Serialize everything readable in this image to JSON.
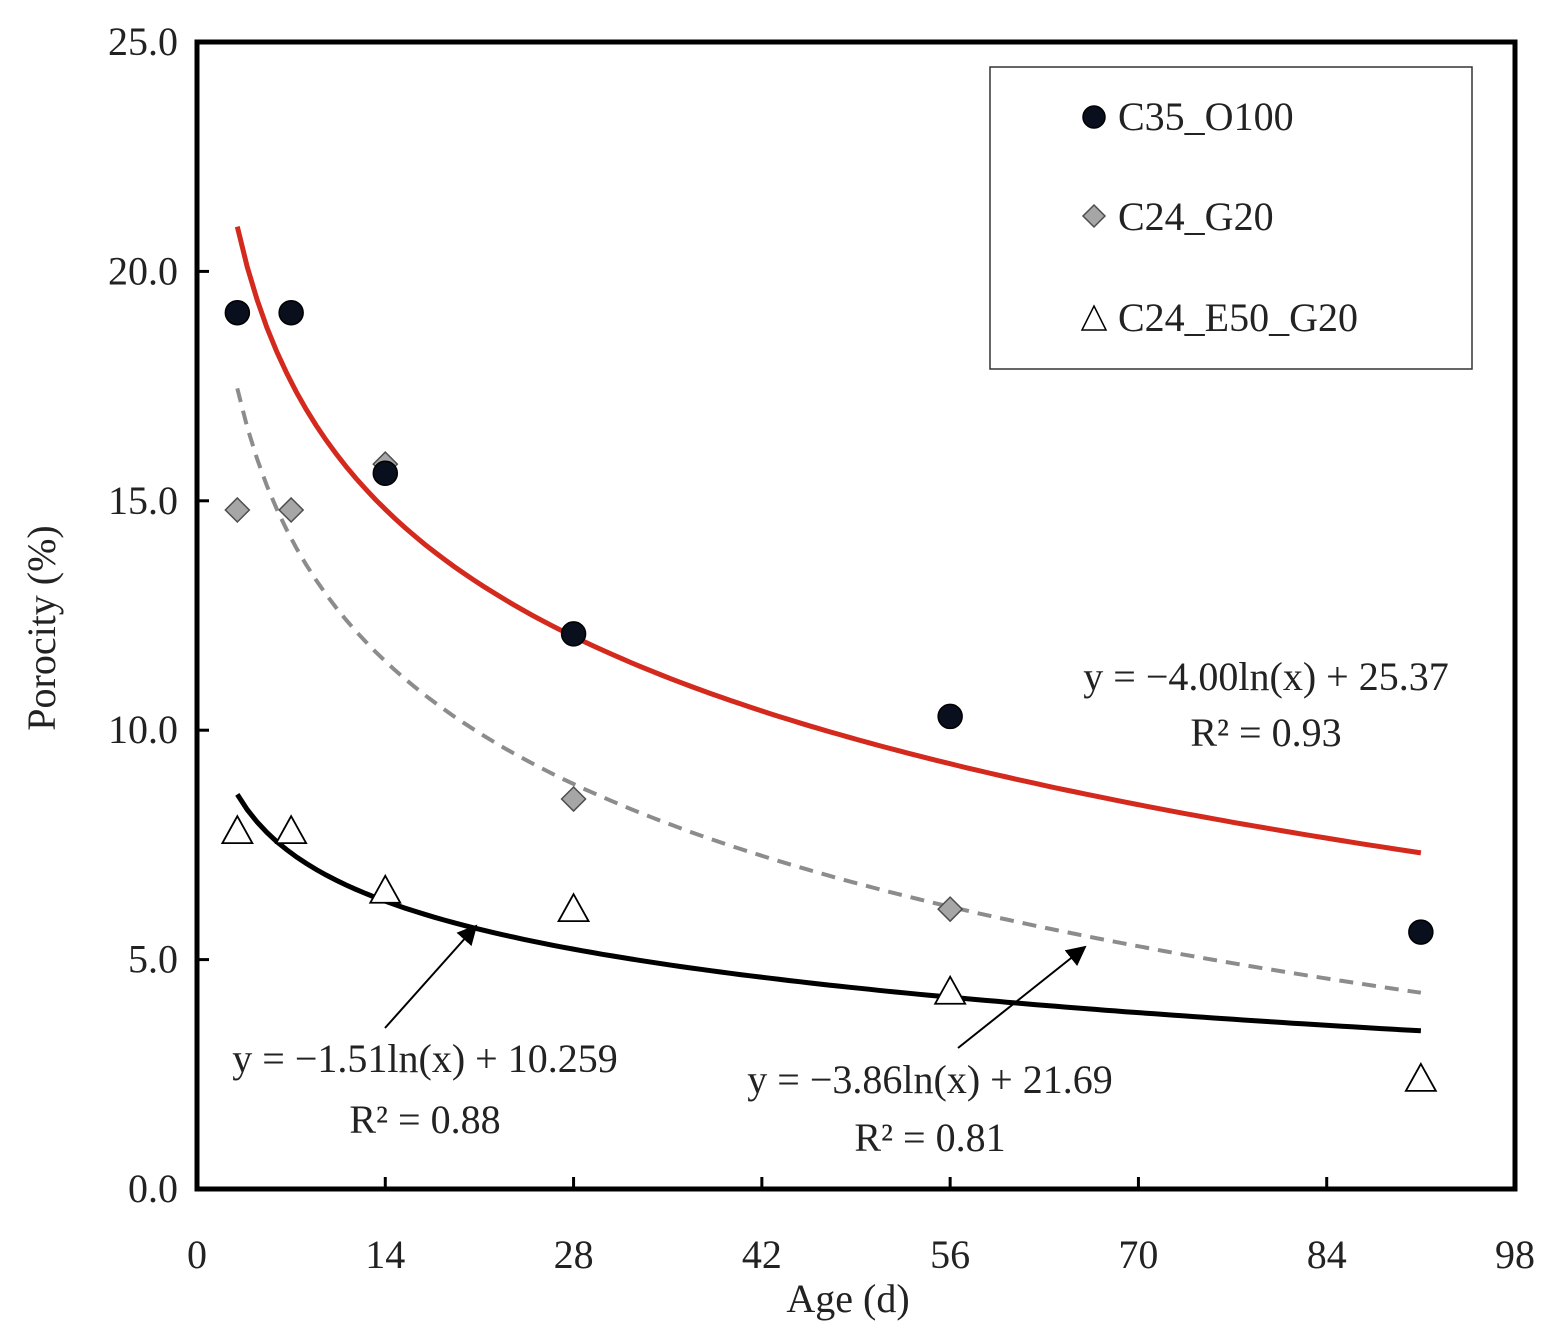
{
  "chart_data": {
    "type": "scatter",
    "title": "",
    "xlabel": "Age (d)",
    "ylabel": "Porocity (%)",
    "xlim": [
      0,
      98
    ],
    "ylim": [
      0,
      25
    ],
    "xticks": [
      0,
      14,
      28,
      42,
      56,
      70,
      84,
      98
    ],
    "xtick_labels": [
      "0",
      "14",
      "28",
      "42",
      "56",
      "70",
      "84",
      "98"
    ],
    "yticks": [
      0,
      5,
      10,
      15,
      20,
      25
    ],
    "ytick_labels": [
      "0.0",
      "5.0",
      "10.0",
      "15.0",
      "20.0",
      "25.0"
    ],
    "grid": false,
    "legend_position": "top-right",
    "series": [
      {
        "name": "C35_O100",
        "marker": "circle",
        "color": "#0a0f1e",
        "points": [
          {
            "x": 3,
            "y": 19.1
          },
          {
            "x": 7,
            "y": 19.1
          },
          {
            "x": 14,
            "y": 15.6
          },
          {
            "x": 28,
            "y": 12.1
          },
          {
            "x": 56,
            "y": 10.3
          },
          {
            "x": 91,
            "y": 5.6
          }
        ],
        "trendline": {
          "type": "logarithmic",
          "a": -4.0,
          "b": 25.37,
          "x_from": 3,
          "x_to": 91,
          "color": "#d42a1e",
          "style": "solid",
          "equation": "y = −4.00ln(x) + 25.37",
          "r2": "R² = 0.93"
        }
      },
      {
        "name": "C24_G20",
        "marker": "diamond",
        "color": "#a6a6a6",
        "points": [
          {
            "x": 3,
            "y": 14.8
          },
          {
            "x": 7,
            "y": 14.8
          },
          {
            "x": 14,
            "y": 15.8
          },
          {
            "x": 28,
            "y": 8.5
          },
          {
            "x": 56,
            "y": 6.1
          }
        ],
        "trendline": {
          "type": "logarithmic",
          "a": -3.86,
          "b": 21.69,
          "x_from": 3,
          "x_to": 91,
          "color": "#8c8c8c",
          "style": "dashed",
          "equation": "y = −3.86ln(x) + 21.69",
          "r2": "R² = 0.81"
        }
      },
      {
        "name": "C24_E50_G20",
        "marker": "triangle",
        "color": "#ffffff",
        "points": [
          {
            "x": 3,
            "y": 7.8
          },
          {
            "x": 7,
            "y": 7.8
          },
          {
            "x": 14,
            "y": 6.5
          },
          {
            "x": 28,
            "y": 6.1
          },
          {
            "x": 56,
            "y": 4.3
          },
          {
            "x": 91,
            "y": 2.4
          }
        ],
        "trendline": {
          "type": "logarithmic",
          "a": -1.51,
          "b": 10.259,
          "x_from": 3,
          "x_to": 91,
          "color": "#000000",
          "style": "solid",
          "equation": "y = −1.51ln(x) + 10.259",
          "r2": "R² = 0.88"
        }
      }
    ]
  }
}
